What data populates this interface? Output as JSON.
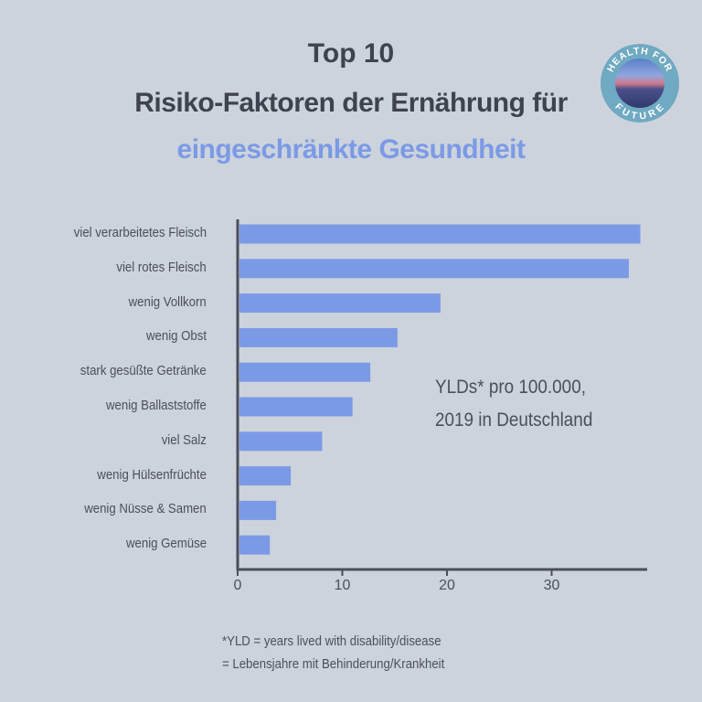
{
  "header": {
    "line1": "Top 10",
    "line2": "Risiko-Faktoren der Ernährung für",
    "line3": "eingeschränkte Gesundheit"
  },
  "logo": {
    "text_top": "HEALTH FOR",
    "text_bottom": "FUTURE"
  },
  "annotation": {
    "line1": "YLDs* pro 100.000,",
    "line2": "2019 in Deutschland"
  },
  "footnote": {
    "line1": "*YLD = years lived with disability/disease",
    "line2": "= Lebensjahre mit Behinderung/Krankheit"
  },
  "colors": {
    "bar": "#7b9ae6",
    "accent": "#7b9ae6",
    "text": "#3e4350",
    "background": "#cdd3dc"
  },
  "chart_data": {
    "type": "bar",
    "orientation": "horizontal",
    "categories": [
      "viel verarbeitetes Fleisch",
      "viel rotes Fleisch",
      "wenig Vollkorn",
      "wenig Obst",
      "stark gesüßte Getränke",
      "wenig Ballaststoffe",
      "viel Salz",
      "wenig Hülsenfrüchte",
      "wenig Nüsse & Samen",
      "wenig Gemüse"
    ],
    "values": [
      38.3,
      37.2,
      19.2,
      15.1,
      12.5,
      10.8,
      7.9,
      4.9,
      3.5,
      2.9
    ],
    "xticks": [
      "0",
      "10",
      "20",
      "30"
    ],
    "xlim": [
      0,
      39
    ],
    "grid": false
  }
}
